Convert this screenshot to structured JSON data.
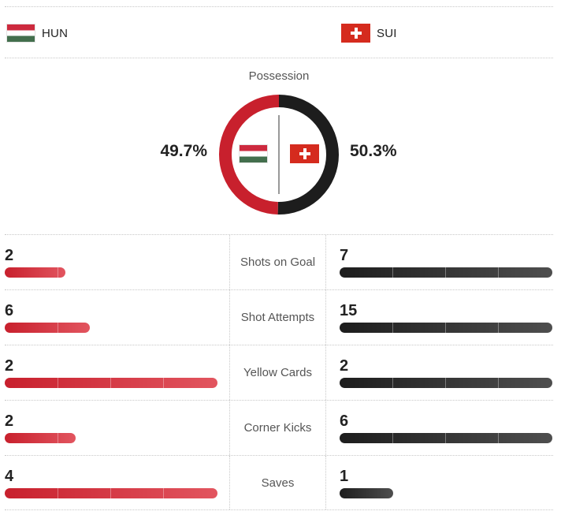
{
  "teams": {
    "home": {
      "name": "HUN",
      "flag_icon": "hungary-flag-icon",
      "color": "#c8202d"
    },
    "away": {
      "name": "SUI",
      "flag_icon": "switzerland-flag-icon",
      "color": "#1d1d1d"
    }
  },
  "possession": {
    "title": "Possession",
    "home_pct": 49.7,
    "away_pct": 50.3,
    "home_label": "49.7%",
    "away_label": "50.3%"
  },
  "stats": [
    {
      "label": "Shots on Goal",
      "home": 2,
      "away": 7,
      "home_label": "2",
      "away_label": "7"
    },
    {
      "label": "Shot Attempts",
      "home": 6,
      "away": 15,
      "home_label": "6",
      "away_label": "15"
    },
    {
      "label": "Yellow Cards",
      "home": 2,
      "away": 2,
      "home_label": "2",
      "away_label": "2"
    },
    {
      "label": "Corner Kicks",
      "home": 2,
      "away": 6,
      "home_label": "2",
      "away_label": "6"
    },
    {
      "label": "Saves",
      "home": 4,
      "away": 1,
      "home_label": "4",
      "away_label": "1"
    }
  ]
}
